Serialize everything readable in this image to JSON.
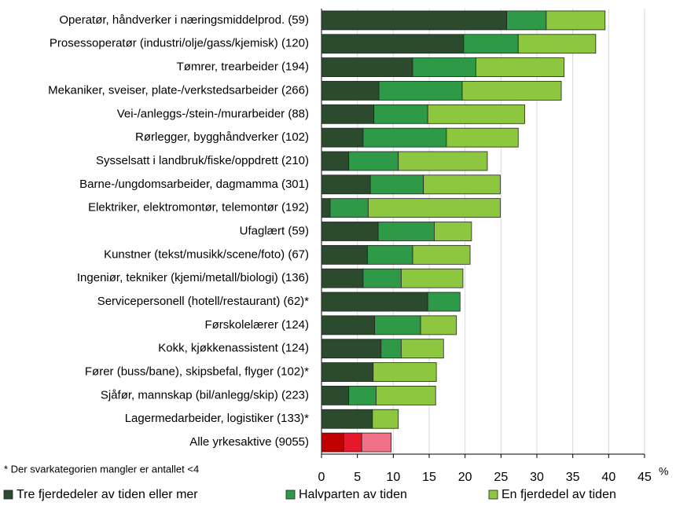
{
  "chart_data": {
    "type": "stacked-barh",
    "categories": [
      "Operatør, håndverker i næringsmiddelprod. (59)",
      "Prosessoperatør  (industri/olje/gass/kjemisk) (120)",
      "Tømrer, trearbeider (194)",
      "Mekaniker, sveiser, plate-/verkstedsarbeider (266)",
      "Vei-/anleggs-/stein-/murarbeider (88)",
      "Rørlegger, bygghåndverker (102)",
      "Sysselsatt i landbruk/fiske/oppdrett (210)",
      "Barne-/ungdomsarbeider, dagmamma (301)",
      "Elektriker, elektromontør, telemontør (192)",
      "Ufaglært (59)",
      "Kunstner  (tekst/musikk/scene/foto) (67)",
      "Ingeniør, tekniker  (kjemi/metall/biologi) (136)",
      "Servicepersonell  (hotell/restaurant) (62)*",
      "Førskolelærer (124)",
      "Kokk, kjøkkenassistent (124)",
      "Fører (buss/bane), skipsbefal, flyger  (102)*",
      "Sjåfør, mannskap  (bil/anlegg/skip) (223)",
      "Lagermedarbeider, logistiker (133)*",
      "Alle yrkesaktive (9055)"
    ],
    "series": [
      {
        "name": "Tre fjerdedeler av tiden eller mer",
        "color": "#2c4a2e",
        "highlight_color": "#c00000",
        "values": [
          25.8,
          19.8,
          12.7,
          8.0,
          7.3,
          5.8,
          3.8,
          6.8,
          1.2,
          7.9,
          6.4,
          5.8,
          14.8,
          7.4,
          8.3,
          7.2,
          3.8,
          7.1,
          3.1
        ]
      },
      {
        "name": "Halvparten av tiden",
        "color": "#2e9a48",
        "highlight_color": "#e8182c",
        "values": [
          5.5,
          7.6,
          8.8,
          11.6,
          7.5,
          11.6,
          6.9,
          7.4,
          5.3,
          7.8,
          6.3,
          5.3,
          4.5,
          6.4,
          2.8,
          null,
          3.8,
          null,
          2.5
        ]
      },
      {
        "name": "En fjerdedel av tiden",
        "color": "#8dc63f",
        "highlight_color": "#f07088",
        "values": [
          8.2,
          10.8,
          12.3,
          13.8,
          13.5,
          10.0,
          12.4,
          10.7,
          18.4,
          5.2,
          8.0,
          8.6,
          null,
          5.0,
          5.9,
          8.8,
          8.3,
          3.6,
          4.1
        ]
      }
    ],
    "highlight_index": 18,
    "xlim": [
      0,
      45
    ],
    "xticks": [
      0,
      5,
      10,
      15,
      20,
      25,
      30,
      35,
      40,
      45
    ],
    "x_unit": "%",
    "grid": true,
    "footnote": "* Der svarkategorien  mangler er antallet <4"
  }
}
